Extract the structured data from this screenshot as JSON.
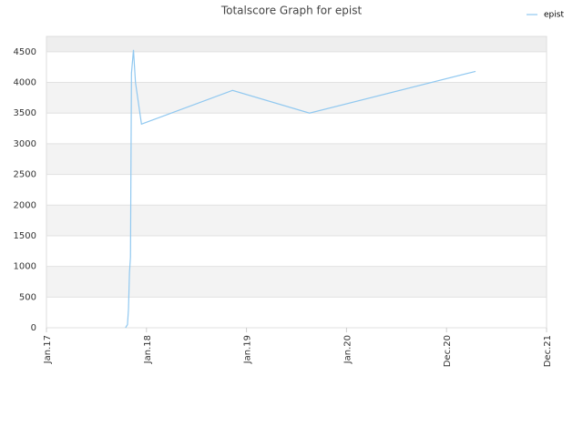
{
  "chart_data": {
    "type": "line",
    "title": "Totalscore Graph for epist",
    "x": [
      2017.79,
      2017.81,
      2017.82,
      2017.83,
      2017.84,
      2017.85,
      2017.87,
      2017.89,
      2017.95,
      2018.86,
      2019.63,
      2021.29
    ],
    "series": [
      {
        "name": "epist",
        "color": "#90c8f0",
        "values": [
          0,
          50,
          300,
          900,
          1150,
          4150,
          4530,
          4000,
          3320,
          3870,
          3500,
          4180
        ]
      }
    ],
    "xlim": [
      2017,
      2022
    ],
    "xticks": [
      {
        "value": 2017,
        "label": "Jan.17"
      },
      {
        "value": 2018,
        "label": "Jan.18"
      },
      {
        "value": 2019,
        "label": "Jan.19"
      },
      {
        "value": 2020,
        "label": "Jan.20"
      },
      {
        "value": 2021,
        "label": "Dec.20"
      },
      {
        "value": 2022,
        "label": "Dec.21"
      }
    ],
    "ylim": [
      0,
      4750
    ],
    "yticks": [
      0,
      500,
      1000,
      1500,
      2000,
      2500,
      3000,
      3500,
      4000,
      4500
    ],
    "grid": true,
    "legend": "top-right"
  }
}
